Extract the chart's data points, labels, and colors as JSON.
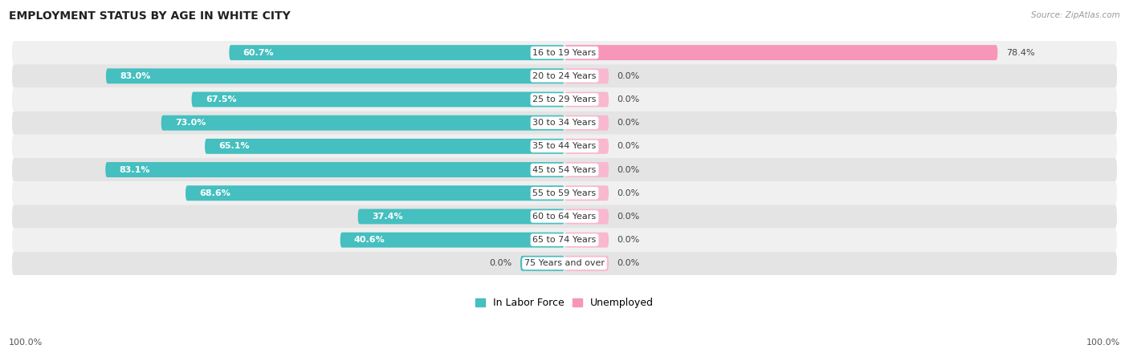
{
  "title": "EMPLOYMENT STATUS BY AGE IN WHITE CITY",
  "source": "Source: ZipAtlas.com",
  "age_groups": [
    "16 to 19 Years",
    "20 to 24 Years",
    "25 to 29 Years",
    "30 to 34 Years",
    "35 to 44 Years",
    "45 to 54 Years",
    "55 to 59 Years",
    "60 to 64 Years",
    "65 to 74 Years",
    "75 Years and over"
  ],
  "in_labor_force": [
    60.7,
    83.0,
    67.5,
    73.0,
    65.1,
    83.1,
    68.6,
    37.4,
    40.6,
    0.0
  ],
  "unemployed": [
    78.4,
    0.0,
    0.0,
    0.0,
    0.0,
    0.0,
    0.0,
    0.0,
    0.0,
    0.0
  ],
  "labor_color": "#45bfbf",
  "unemployed_color": "#f796b8",
  "unemployed_color_dim": "#f8b8cf",
  "row_bg_light": "#f0f0f0",
  "row_bg_dark": "#e4e4e4",
  "min_bar_width": 8.0,
  "legend_labor": "In Labor Force",
  "legend_unemployed": "Unemployed",
  "x_left_label": "100.0%",
  "x_right_label": "100.0%"
}
